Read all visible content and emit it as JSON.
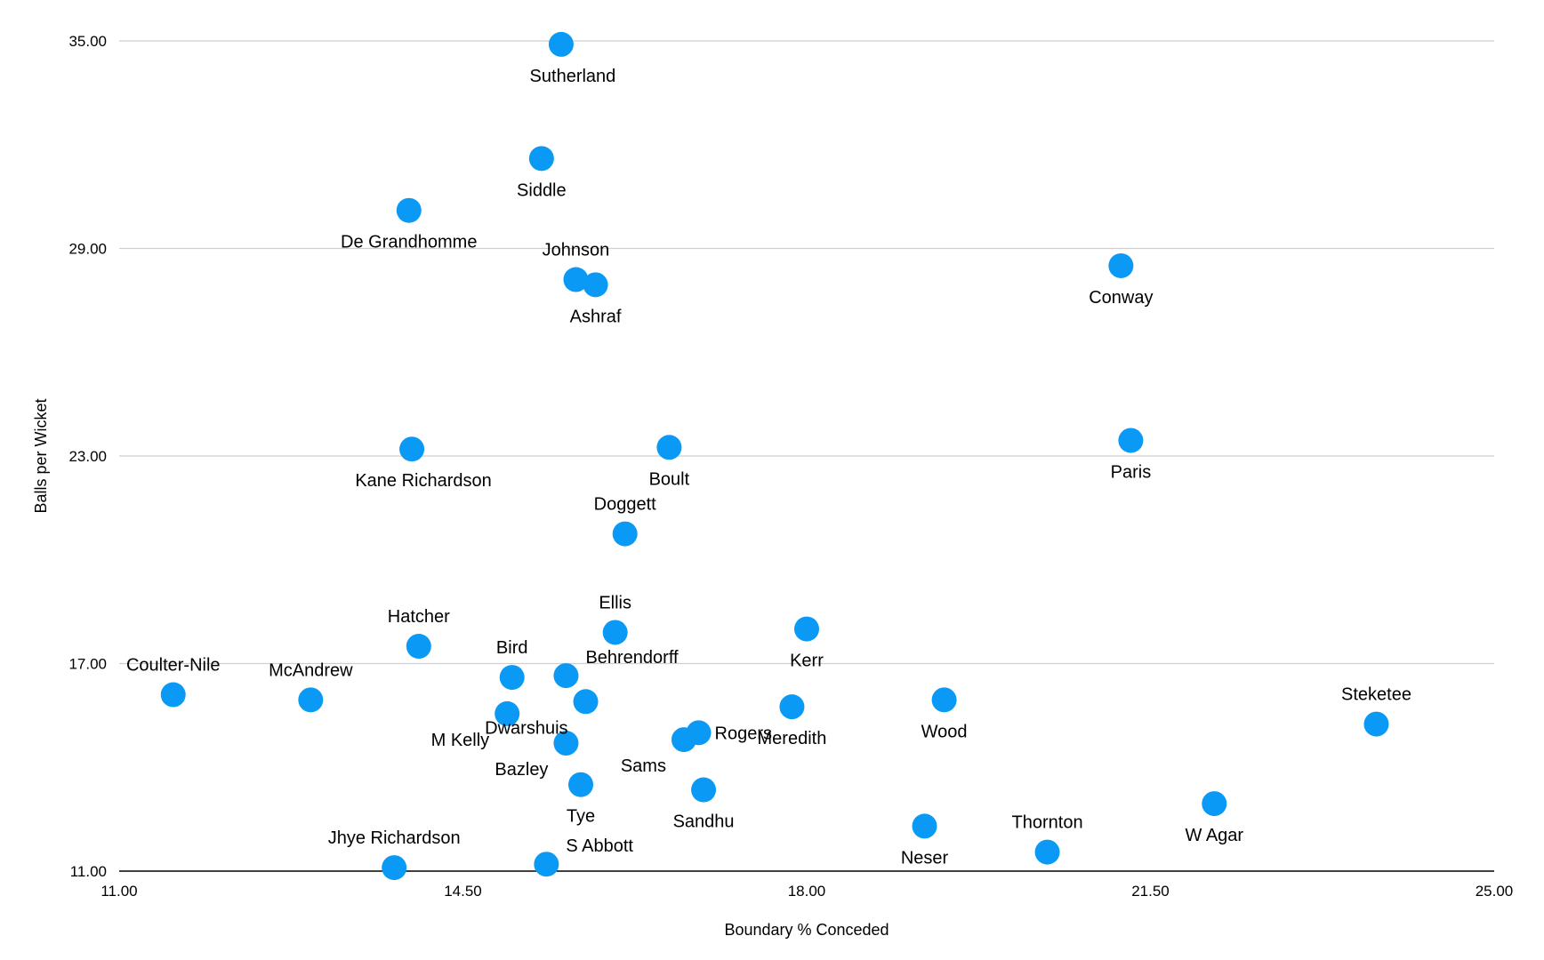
{
  "colors": {
    "point": "#0a9af5",
    "grid": "#cfcfcf",
    "axis": "#000000"
  },
  "chart_data": {
    "type": "scatter",
    "title": "",
    "xlabel": "Boundary % Conceded",
    "ylabel": "Balls per Wicket",
    "xlim": [
      11,
      25
    ],
    "ylim": [
      11,
      35
    ],
    "x_ticks": [
      "11.00",
      "14.50",
      "18.00",
      "21.50",
      "25.00"
    ],
    "y_ticks": [
      "11.00",
      "17.00",
      "23.00",
      "29.00",
      "35.00"
    ],
    "grid": true,
    "legend": "none",
    "points": [
      {
        "name": "Sutherland",
        "x": 15.5,
        "y": 34.9,
        "label_pos": "below-right"
      },
      {
        "name": "Siddle",
        "x": 15.3,
        "y": 31.6,
        "label_pos": "below"
      },
      {
        "name": "De Grandhomme",
        "x": 13.95,
        "y": 30.1,
        "label_pos": "below"
      },
      {
        "name": "Johnson",
        "x": 15.65,
        "y": 28.1,
        "label_pos": "above"
      },
      {
        "name": "Ashraf",
        "x": 15.85,
        "y": 27.95,
        "label_pos": "below"
      },
      {
        "name": "Conway",
        "x": 21.2,
        "y": 28.5,
        "label_pos": "below"
      },
      {
        "name": "Kane Richardson",
        "x": 13.98,
        "y": 23.2,
        "label_pos": "below-right"
      },
      {
        "name": "Boult",
        "x": 16.6,
        "y": 23.25,
        "label_pos": "below"
      },
      {
        "name": "Paris",
        "x": 21.3,
        "y": 23.45,
        "label_pos": "below"
      },
      {
        "name": "Doggett",
        "x": 16.15,
        "y": 20.75,
        "label_pos": "above"
      },
      {
        "name": "Ellis",
        "x": 16.05,
        "y": 17.9,
        "label_pos": "above"
      },
      {
        "name": "Kerr",
        "x": 18.0,
        "y": 18.0,
        "label_pos": "below"
      },
      {
        "name": "Hatcher",
        "x": 14.05,
        "y": 17.5,
        "label_pos": "above"
      },
      {
        "name": "Coulter-Nile",
        "x": 11.55,
        "y": 16.1,
        "label_pos": "above"
      },
      {
        "name": "McAndrew",
        "x": 12.95,
        "y": 15.95,
        "label_pos": "above"
      },
      {
        "name": "Bird",
        "x": 15.0,
        "y": 16.6,
        "label_pos": "above"
      },
      {
        "name": "Behrendorff",
        "x": 15.55,
        "y": 16.65,
        "label_pos": "right-above"
      },
      {
        "name": "Dwarshuis",
        "x": 15.75,
        "y": 15.9,
        "label_pos": "below-left"
      },
      {
        "name": "M Kelly",
        "x": 14.95,
        "y": 15.55,
        "label_pos": "below-left"
      },
      {
        "name": "Bazley",
        "x": 15.55,
        "y": 14.7,
        "label_pos": "below-left"
      },
      {
        "name": "Meredith",
        "x": 17.85,
        "y": 15.75,
        "label_pos": "below"
      },
      {
        "name": "Wood",
        "x": 19.4,
        "y": 15.95,
        "label_pos": "below"
      },
      {
        "name": "Rogers",
        "x": 16.9,
        "y": 15.0,
        "label_pos": "right"
      },
      {
        "name": "Sams",
        "x": 16.75,
        "y": 14.8,
        "label_pos": "below-left"
      },
      {
        "name": "Steketee",
        "x": 23.8,
        "y": 15.25,
        "label_pos": "above"
      },
      {
        "name": "Tye",
        "x": 15.7,
        "y": 13.5,
        "label_pos": "below"
      },
      {
        "name": "Sandhu",
        "x": 16.95,
        "y": 13.35,
        "label_pos": "below"
      },
      {
        "name": "W Agar",
        "x": 22.15,
        "y": 12.95,
        "label_pos": "below"
      },
      {
        "name": "Neser",
        "x": 19.2,
        "y": 12.3,
        "label_pos": "below"
      },
      {
        "name": "Thornton",
        "x": 20.45,
        "y": 11.55,
        "label_pos": "above"
      },
      {
        "name": "Jhye Richardson",
        "x": 13.8,
        "y": 11.1,
        "label_pos": "above"
      },
      {
        "name": "S Abbott",
        "x": 15.35,
        "y": 11.2,
        "label_pos": "right-above"
      }
    ]
  }
}
